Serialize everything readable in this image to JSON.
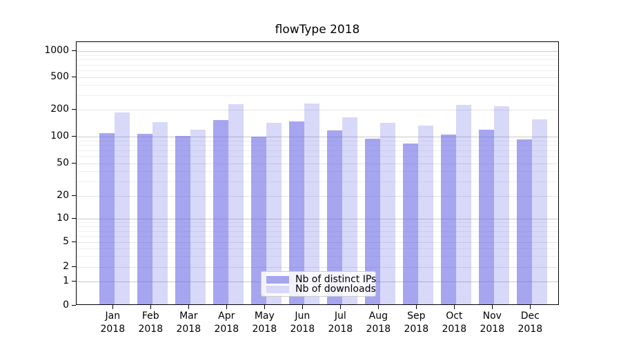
{
  "chart_data": {
    "type": "bar",
    "title": "flowType 2018",
    "categories": [
      "Jan 2018",
      "Feb 2018",
      "Mar 2018",
      "Apr 2018",
      "May 2018",
      "Jun 2018",
      "Jul 2018",
      "Aug 2018",
      "Sep 2018",
      "Oct 2018",
      "Nov 2018",
      "Dec 2018"
    ],
    "series": [
      {
        "name": "Nb of distinct IPs",
        "color": "#a5a5f0",
        "fill": "rgba(91,91,228,0.55)",
        "values": [
          106,
          103,
          98,
          147,
          96,
          142,
          113,
          91,
          81,
          101,
          114,
          90
        ]
      },
      {
        "name": "Nb of downloads",
        "color": "#d8d8f9",
        "fill": "rgba(78,78,228,0.22)",
        "values": [
          180,
          140,
          116,
          224,
          139,
          232,
          160,
          139,
          129,
          221,
          212,
          152
        ]
      }
    ],
    "yscale": "symlog",
    "ylim": [
      0,
      1280
    ],
    "y_tick_labels": [
      "0",
      "1",
      "2",
      "5",
      "10",
      "20",
      "50",
      "100",
      "200",
      "500",
      "1000"
    ],
    "grid": true,
    "legend_position": "lower center",
    "xlabel": "",
    "ylabel": ""
  }
}
